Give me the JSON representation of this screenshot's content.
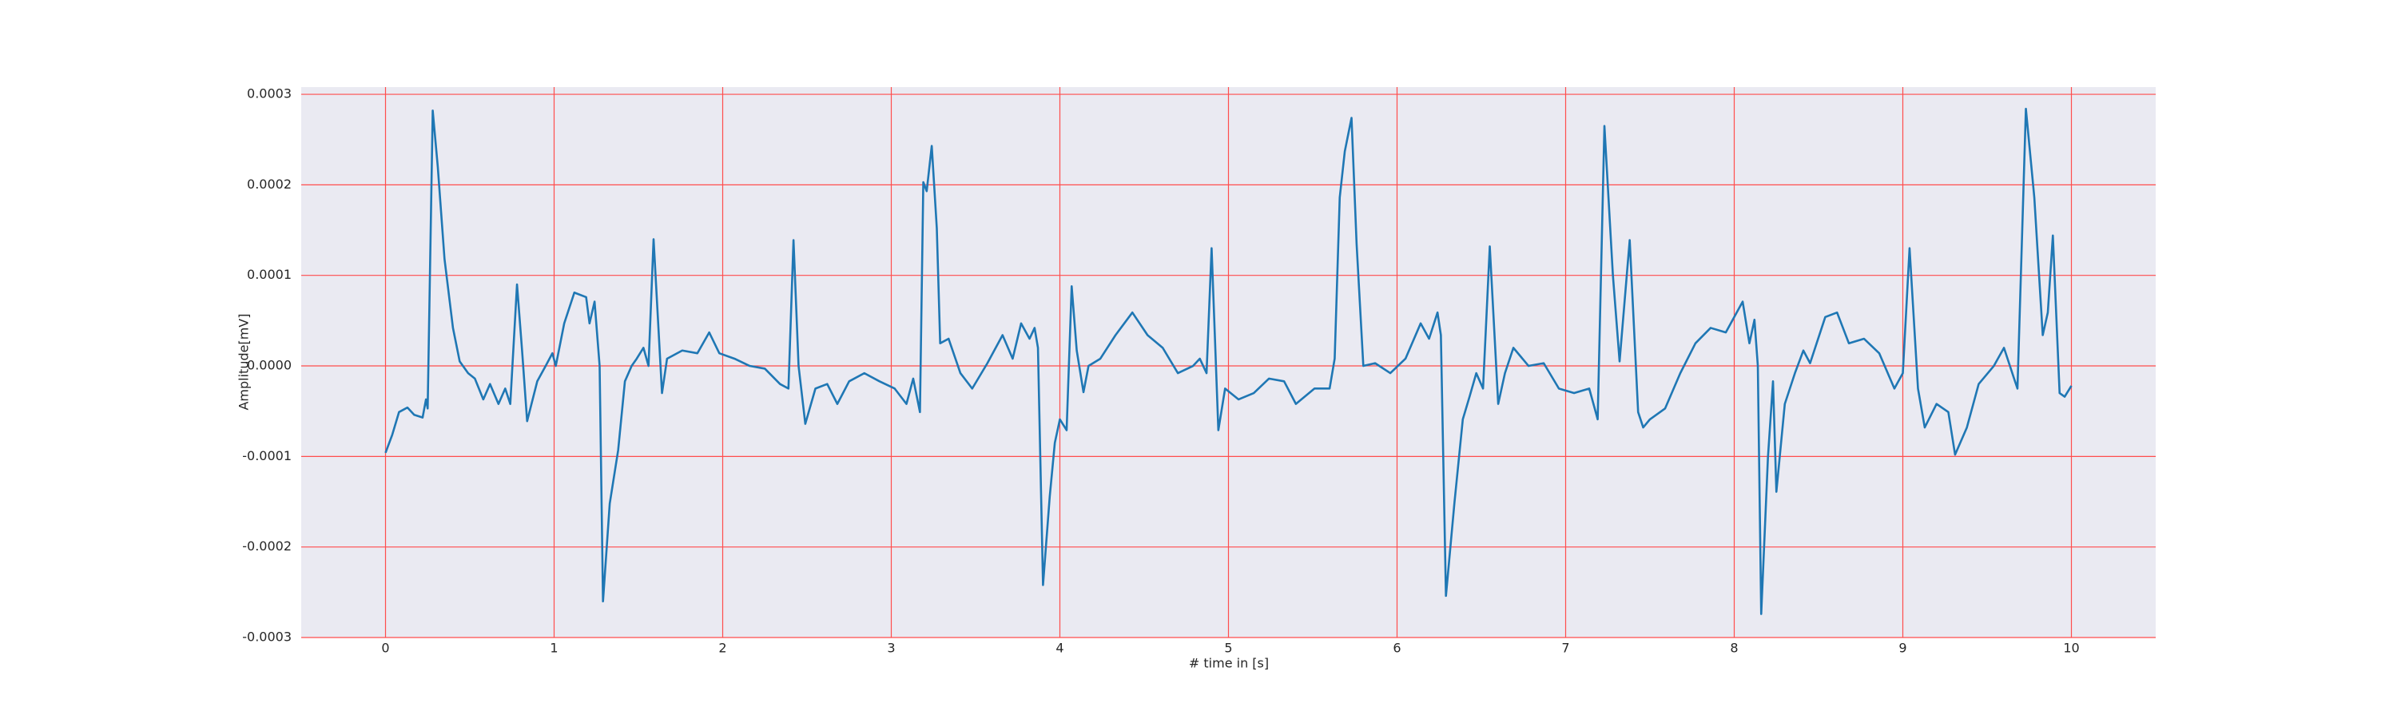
{
  "chart_data": {
    "type": "line",
    "xlabel": "# time in [s]",
    "ylabel": "Amplitude[mV]",
    "xlim": [
      -0.5,
      10.5
    ],
    "ylim": [
      -0.0003,
      0.000308
    ],
    "xticks": [
      0,
      1,
      2,
      3,
      4,
      5,
      6,
      7,
      8,
      9,
      10
    ],
    "yticks": [
      -0.0003,
      -0.0002,
      -0.0001,
      {
        "value": 0,
        "label": "0.0000"
      },
      0.0001,
      0.0002,
      0.0003
    ],
    "grid": true,
    "grid_color": "#ff4d4d",
    "background": "#eaeaf2",
    "color": "#1f77b4",
    "x": [
      0.0,
      0.04,
      0.08,
      0.13,
      0.17,
      0.22,
      0.24,
      0.25,
      0.28,
      0.31,
      0.35,
      0.4,
      0.44,
      0.49,
      0.53,
      0.58,
      0.62,
      0.67,
      0.71,
      0.74,
      0.78,
      0.81,
      0.84,
      0.9,
      0.95,
      0.99,
      1.01,
      1.06,
      1.12,
      1.19,
      1.21,
      1.24,
      1.27,
      1.29,
      1.33,
      1.38,
      1.42,
      1.46,
      1.49,
      1.53,
      1.56,
      1.59,
      1.64,
      1.67,
      1.76,
      1.85,
      1.92,
      1.98,
      2.07,
      2.16,
      2.25,
      2.34,
      2.39,
      2.42,
      2.45,
      2.49,
      2.55,
      2.62,
      2.68,
      2.75,
      2.84,
      2.93,
      3.02,
      3.09,
      3.13,
      3.17,
      3.19,
      3.21,
      3.24,
      3.27,
      3.29,
      3.34,
      3.41,
      3.48,
      3.57,
      3.66,
      3.72,
      3.77,
      3.82,
      3.85,
      3.87,
      3.9,
      3.94,
      3.97,
      4.0,
      4.04,
      4.07,
      4.1,
      4.14,
      4.17,
      4.24,
      4.33,
      4.43,
      4.52,
      4.61,
      4.7,
      4.79,
      4.83,
      4.87,
      4.9,
      4.94,
      4.98,
      5.06,
      5.15,
      5.24,
      5.33,
      5.4,
      5.51,
      5.6,
      5.63,
      5.66,
      5.69,
      5.73,
      5.76,
      5.8,
      5.87,
      5.96,
      6.05,
      6.14,
      6.19,
      6.24,
      6.26,
      6.29,
      6.34,
      6.39,
      6.43,
      6.47,
      6.51,
      6.55,
      6.6,
      6.64,
      6.69,
      6.78,
      6.87,
      6.96,
      7.05,
      7.14,
      7.19,
      7.23,
      7.28,
      7.32,
      7.38,
      7.43,
      7.46,
      7.5,
      7.59,
      7.68,
      7.77,
      7.86,
      7.95,
      8.05,
      8.09,
      8.12,
      8.14,
      8.16,
      8.2,
      8.23,
      8.25,
      8.3,
      8.36,
      8.41,
      8.45,
      8.54,
      8.61,
      8.68,
      8.77,
      8.86,
      8.95,
      9.0,
      9.04,
      9.09,
      9.13,
      9.2,
      9.27,
      9.31,
      9.38,
      9.45,
      9.54,
      9.6,
      9.66,
      9.68,
      9.73,
      9.78,
      9.83,
      9.86,
      9.89,
      9.93,
      9.96,
      10.0
    ],
    "values": [
      -9.6e-05,
      -7.6e-05,
      -5.1e-05,
      -4.6e-05,
      -5.4e-05,
      -5.7e-05,
      -3.7e-05,
      -4.7e-05,
      0.000282,
      0.00022,
      0.000118,
      4.2e-05,
      5e-06,
      -8e-06,
      -1.4e-05,
      -3.7e-05,
      -2e-05,
      -4.2e-05,
      -2.5e-05,
      -4.2e-05,
      9e-05,
      1.7e-05,
      -6.1e-05,
      -1.7e-05,
      0,
      1.4e-05,
      0,
      4.7e-05,
      8.1e-05,
      7.6e-05,
      4.7e-05,
      7.1e-05,
      0,
      -0.00026,
      -0.000152,
      -9.3e-05,
      -1.7e-05,
      0,
      8e-06,
      2e-05,
      0,
      0.00014,
      -3e-05,
      8e-06,
      1.7e-05,
      1.4e-05,
      3.7e-05,
      1.4e-05,
      8e-06,
      0,
      -3e-06,
      -2e-05,
      -2.5e-05,
      0.000139,
      0,
      -6.4e-05,
      -2.5e-05,
      -2e-05,
      -4.2e-05,
      -1.7e-05,
      -8e-06,
      -1.7e-05,
      -2.5e-05,
      -4.2e-05,
      -1.4e-05,
      -5.1e-05,
      0.000203,
      0.000193,
      0.000243,
      0.000152,
      2.5e-05,
      3e-05,
      -8e-06,
      -2.5e-05,
      3e-06,
      3.4e-05,
      8e-06,
      4.7e-05,
      3e-05,
      4.2e-05,
      2e-05,
      -0.000242,
      -0.000144,
      -8.5e-05,
      -5.9e-05,
      -7.1e-05,
      8.8e-05,
      1.7e-05,
      -2.9e-05,
      0,
      8e-06,
      3.4e-05,
      5.9e-05,
      3.4e-05,
      2e-05,
      -8e-06,
      0,
      8e-06,
      -8e-06,
      0.00013,
      -7.1e-05,
      -2.5e-05,
      -3.7e-05,
      -3e-05,
      -1.4e-05,
      -1.7e-05,
      -4.2e-05,
      -2.5e-05,
      -2.5e-05,
      8e-06,
      0.000186,
      0.000237,
      0.000274,
      0.000135,
      0,
      3e-06,
      -8e-06,
      8e-06,
      4.7e-05,
      3e-05,
      5.9e-05,
      3.4e-05,
      -0.000254,
      -0.000152,
      -5.9e-05,
      -3.4e-05,
      -8e-06,
      -2.5e-05,
      0.000132,
      -4.2e-05,
      -8e-06,
      2e-05,
      0,
      3e-06,
      -2.5e-05,
      -3e-05,
      -2.5e-05,
      -5.9e-05,
      0.000265,
      0.000101,
      5e-06,
      0.000139,
      -5.1e-05,
      -6.8e-05,
      -5.9e-05,
      -4.7e-05,
      -8e-06,
      2.5e-05,
      4.2e-05,
      3.7e-05,
      7.1e-05,
      2.5e-05,
      5.1e-05,
      0,
      -0.000274,
      -0.000101,
      -1.7e-05,
      -0.000139,
      -4.2e-05,
      -8e-06,
      1.7e-05,
      3e-06,
      5.4e-05,
      5.9e-05,
      2.5e-05,
      3e-05,
      1.4e-05,
      -2.5e-05,
      -8e-06,
      0.00013,
      -2.5e-05,
      -6.8e-05,
      -4.2e-05,
      -5.1e-05,
      -9.8e-05,
      -6.8e-05,
      -2e-05,
      0,
      2e-05,
      -1.4e-05,
      -2.5e-05,
      0.000284,
      0.000186,
      3.4e-05,
      5.9e-05,
      0.000144,
      -3e-05,
      -3.4e-05,
      -2.2e-05
    ]
  }
}
